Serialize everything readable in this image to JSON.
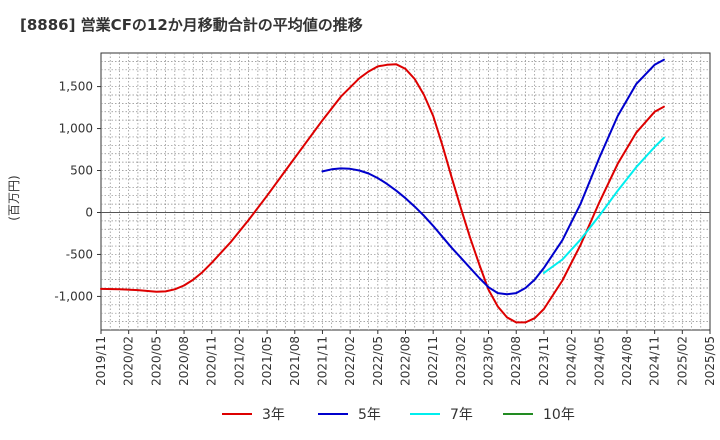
{
  "chart_data": {
    "type": "line",
    "title": "[8886]  営業CFの12か月移動合計の平均値の推移",
    "ylabel": "(百万円)",
    "xlabel": "",
    "ylim": [
      -1400,
      1900
    ],
    "yticks": [
      1500,
      1000,
      500,
      0,
      -500,
      -1000
    ],
    "ytick_labels": [
      "1,500",
      "1,000",
      "500",
      "0",
      "-500",
      "-1,000"
    ],
    "x_tick_labels": [
      "2019/11",
      "2020/02",
      "2020/05",
      "2020/08",
      "2020/11",
      "2021/02",
      "2021/05",
      "2021/08",
      "2021/11",
      "2022/02",
      "2022/05",
      "2022/08",
      "2022/11",
      "2023/02",
      "2023/05",
      "2023/08",
      "2023/11",
      "2024/02",
      "2024/05",
      "2024/08",
      "2024/11",
      "2025/02",
      "2025/05"
    ],
    "x_range": [
      "2019/11",
      "2025/05"
    ],
    "grid": true,
    "legend_position": "bottom",
    "series": [
      {
        "name": "3年",
        "color": "#dd0000",
        "points": [
          [
            "2019/11",
            -910
          ],
          [
            "2020/01",
            -915
          ],
          [
            "2020/03",
            -925
          ],
          [
            "2020/05",
            -945
          ],
          [
            "2020/06",
            -940
          ],
          [
            "2020/07",
            -915
          ],
          [
            "2020/08",
            -870
          ],
          [
            "2020/09",
            -800
          ],
          [
            "2020/10",
            -710
          ],
          [
            "2020/11",
            -600
          ],
          [
            "2021/01",
            -360
          ],
          [
            "2021/03",
            -90
          ],
          [
            "2021/05",
            200
          ],
          [
            "2021/07",
            500
          ],
          [
            "2021/09",
            800
          ],
          [
            "2021/11",
            1100
          ],
          [
            "2022/01",
            1380
          ],
          [
            "2022/03",
            1600
          ],
          [
            "2022/04",
            1680
          ],
          [
            "2022/05",
            1740
          ],
          [
            "2022/06",
            1760
          ],
          [
            "2022/07",
            1765
          ],
          [
            "2022/08",
            1710
          ],
          [
            "2022/09",
            1590
          ],
          [
            "2022/10",
            1400
          ],
          [
            "2022/11",
            1150
          ],
          [
            "2022/12",
            800
          ],
          [
            "2023/01",
            420
          ],
          [
            "2023/02",
            50
          ],
          [
            "2023/03",
            -300
          ],
          [
            "2023/04",
            -620
          ],
          [
            "2023/05",
            -920
          ],
          [
            "2023/06",
            -1120
          ],
          [
            "2023/07",
            -1250
          ],
          [
            "2023/08",
            -1310
          ],
          [
            "2023/09",
            -1310
          ],
          [
            "2023/10",
            -1260
          ],
          [
            "2023/11",
            -1150
          ],
          [
            "2024/01",
            -810
          ],
          [
            "2024/03",
            -380
          ],
          [
            "2024/05",
            120
          ],
          [
            "2024/07",
            580
          ],
          [
            "2024/09",
            950
          ],
          [
            "2024/11",
            1200
          ],
          [
            "2024/12",
            1260
          ]
        ]
      },
      {
        "name": "5年",
        "color": "#0000cc",
        "points": [
          [
            "2021/11",
            490
          ],
          [
            "2021/12",
            515
          ],
          [
            "2022/01",
            525
          ],
          [
            "2022/02",
            520
          ],
          [
            "2022/03",
            500
          ],
          [
            "2022/04",
            465
          ],
          [
            "2022/05",
            410
          ],
          [
            "2022/06",
            340
          ],
          [
            "2022/07",
            260
          ],
          [
            "2022/08",
            170
          ],
          [
            "2022/09",
            70
          ],
          [
            "2022/10",
            -40
          ],
          [
            "2022/11",
            -160
          ],
          [
            "2022/12",
            -290
          ],
          [
            "2023/01",
            -420
          ],
          [
            "2023/02",
            -540
          ],
          [
            "2023/03",
            -660
          ],
          [
            "2023/04",
            -780
          ],
          [
            "2023/05",
            -890
          ],
          [
            "2023/06",
            -960
          ],
          [
            "2023/07",
            -975
          ],
          [
            "2023/08",
            -960
          ],
          [
            "2023/09",
            -900
          ],
          [
            "2023/10",
            -800
          ],
          [
            "2023/11",
            -660
          ],
          [
            "2024/01",
            -330
          ],
          [
            "2024/03",
            110
          ],
          [
            "2024/05",
            650
          ],
          [
            "2024/07",
            1150
          ],
          [
            "2024/09",
            1530
          ],
          [
            "2024/11",
            1760
          ],
          [
            "2024/12",
            1820
          ]
        ]
      },
      {
        "name": "7年",
        "color": "#00eeee",
        "points": [
          [
            "2023/11",
            -720
          ],
          [
            "2024/01",
            -560
          ],
          [
            "2024/03",
            -320
          ],
          [
            "2024/05",
            -40
          ],
          [
            "2024/07",
            260
          ],
          [
            "2024/09",
            540
          ],
          [
            "2024/11",
            780
          ],
          [
            "2024/12",
            890
          ]
        ]
      },
      {
        "name": "10年",
        "color": "#228b22",
        "points": []
      }
    ]
  }
}
